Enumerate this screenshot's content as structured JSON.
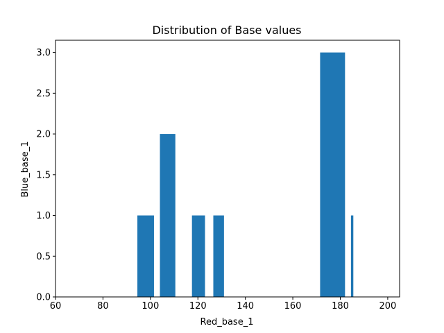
{
  "chart_data": {
    "type": "bar",
    "title": "Distribution of Base values",
    "xlabel": "Red_base_1",
    "ylabel": "Blue_base_1",
    "xlim": [
      60,
      205
    ],
    "ylim": [
      0,
      3.15
    ],
    "xticks": [
      "60",
      "80",
      "100",
      "120",
      "140",
      "160",
      "180",
      "200"
    ],
    "xtick_values": [
      60,
      80,
      100,
      120,
      140,
      160,
      180,
      200
    ],
    "yticks": [
      "0.0",
      "0.5",
      "1.0",
      "1.5",
      "2.0",
      "2.5",
      "3.0"
    ],
    "ytick_values": [
      0,
      0.5,
      1.0,
      1.5,
      2.0,
      2.5,
      3.0
    ],
    "grid": false,
    "bars": [
      {
        "x0": 94.5,
        "x1": 101.5,
        "value": 1
      },
      {
        "x0": 104.0,
        "x1": 110.5,
        "value": 2
      },
      {
        "x0": 117.5,
        "x1": 123.0,
        "value": 1
      },
      {
        "x0": 126.5,
        "x1": 131.0,
        "value": 1
      },
      {
        "x0": 171.5,
        "x1": 182.0,
        "value": 3
      },
      {
        "x0": 184.5,
        "x1": 185.5,
        "value": 1
      }
    ],
    "bar_color": "#1f77b4"
  }
}
